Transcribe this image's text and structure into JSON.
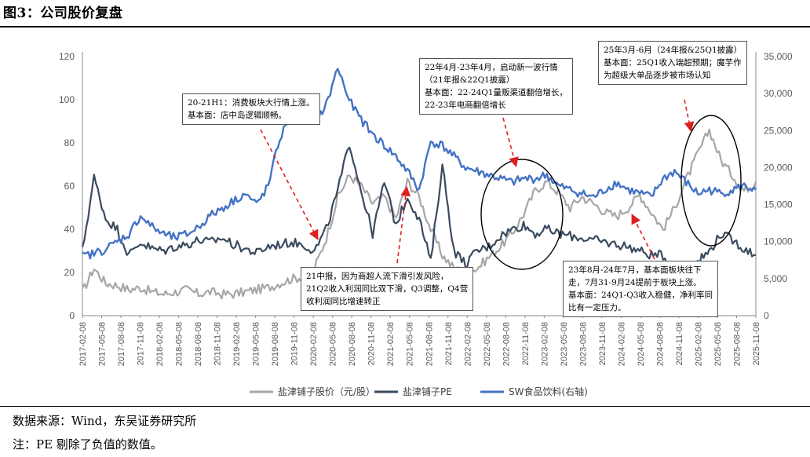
{
  "figure": {
    "title": "图3：公司股价复盘"
  },
  "footer": {
    "source": "数据来源：Wind，东吴证券研究所",
    "note": "注：PE 剔除了负值的数值。"
  },
  "annotations": [
    {
      "id": "a1",
      "text": "20-21H1：消费板块大行情上涨。\n基本面：店中岛逻辑顺畅。"
    },
    {
      "id": "a2",
      "text": "22年4月-23年4月，启动新一波行情\n（21年报&22Q1披露）\n基本面：22-24Q1量贩渠道翻倍增长，\n22-23年电商翻倍增长"
    },
    {
      "id": "a3",
      "text": "25年3月-6月（24年报&25Q1披露）\n基本面：25Q1收入端超预期；魔芋作\n为超级大单品逐步被市场认知"
    },
    {
      "id": "a4",
      "text": "21中报，因为商超人流下滑引发风险，\n21Q2收入利润同比双下滑，Q3调整，Q4营\n收利润同比增速转正"
    },
    {
      "id": "a5",
      "text": "23年8月-24年7月，基本面板块往下\n走，7月31-9月24提前于板块上涨。\n基本面：24Q1-Q3收入稳健，净利率同\n比有一定压力。"
    }
  ],
  "chart_data": {
    "type": "line",
    "title": "",
    "xlabel": "",
    "ylabel": "",
    "y_left_lim": [
      0,
      120
    ],
    "y_left_ticks": [
      "0",
      "20",
      "40",
      "60",
      "80",
      "100",
      "120"
    ],
    "y_right_lim": [
      0,
      35000
    ],
    "y_right_ticks": [
      "0",
      "5,000",
      "10,000",
      "15,000",
      "20,000",
      "25,000",
      "30,000",
      "35,000"
    ],
    "x_tick_labels": [
      "2017-02-08",
      "2017-05-08",
      "2017-08-08",
      "2017-11-08",
      "2018-02-08",
      "2018-05-08",
      "2018-08-08",
      "2018-11-08",
      "2019-02-08",
      "2019-05-08",
      "2019-08-08",
      "2019-11-08",
      "2020-02-08",
      "2020-05-08",
      "2020-08-08",
      "2020-11-08",
      "2021-02-08",
      "2021-05-08",
      "2021-08-08",
      "2021-11-08",
      "2022-02-08",
      "2022-05-08",
      "2022-08-08",
      "2022-11-08",
      "2023-02-08",
      "2023-05-08",
      "2023-08-08",
      "2023-11-08",
      "2024-02-08",
      "2024-05-08",
      "2024-08-08",
      "2024-11-08",
      "2025-02-08",
      "2025-05-08",
      "2025-08-08",
      "2025-11-08"
    ],
    "grid": false,
    "legend": "bottom",
    "colors": {
      "price": "#a6a6a6",
      "pe": "#3a4a5e",
      "index": "#4472c4",
      "arrow": "#e02020"
    },
    "series": [
      {
        "name": "盐津铺子股价（元/股）",
        "axis": "left",
        "values": [
          11,
          22,
          15,
          14,
          12,
          13,
          11,
          10,
          11,
          12,
          10,
          11,
          10,
          10,
          11,
          12,
          13,
          15,
          17,
          18,
          22,
          36,
          55,
          65,
          60,
          52,
          55,
          45,
          62,
          55,
          40,
          28,
          22,
          20,
          22,
          27,
          32,
          38,
          47,
          58,
          62,
          57,
          50,
          55,
          52,
          48,
          46,
          50,
          56,
          48,
          40,
          50,
          63,
          75,
          86,
          72,
          65,
          58,
          62
        ]
      },
      {
        "name": "盐津铺子PE",
        "axis": "left",
        "values": [
          30,
          64,
          45,
          40,
          28,
          34,
          31,
          30,
          32,
          33,
          35,
          34,
          36,
          33,
          31,
          29,
          32,
          33,
          34,
          33,
          30,
          40,
          58,
          80,
          58,
          38,
          62,
          42,
          55,
          45,
          25,
          70,
          30,
          24,
          30,
          32,
          37,
          40,
          42,
          38,
          40,
          38,
          37,
          36,
          35,
          34,
          33,
          32,
          30,
          28,
          28,
          22,
          22,
          25,
          30,
          38,
          35,
          31,
          28
        ]
      },
      {
        "name": "SW食品饮料(右轴)",
        "axis": "right",
        "values": [
          8000,
          8400,
          9000,
          10000,
          11000,
          13500,
          12000,
          11000,
          10500,
          11000,
          12000,
          13500,
          14500,
          15500,
          16500,
          15000,
          17500,
          24000,
          27000,
          29000,
          26000,
          28500,
          33500,
          29000,
          26500,
          24500,
          23000,
          21500,
          19500,
          17000,
          23500,
          23000,
          21500,
          20000,
          19500,
          19000,
          18500,
          18000,
          18500,
          18500,
          19000,
          17500,
          17000,
          16500,
          16000,
          17000,
          18000,
          17000,
          16500,
          16000,
          18500,
          19500,
          18000,
          16500,
          17000,
          16500,
          17000,
          17500,
          17000
        ]
      }
    ]
  },
  "legend_items": [
    "盐津铺子股价（元/股）",
    "盐津铺子PE",
    "SW食品饮料(右轴)"
  ]
}
